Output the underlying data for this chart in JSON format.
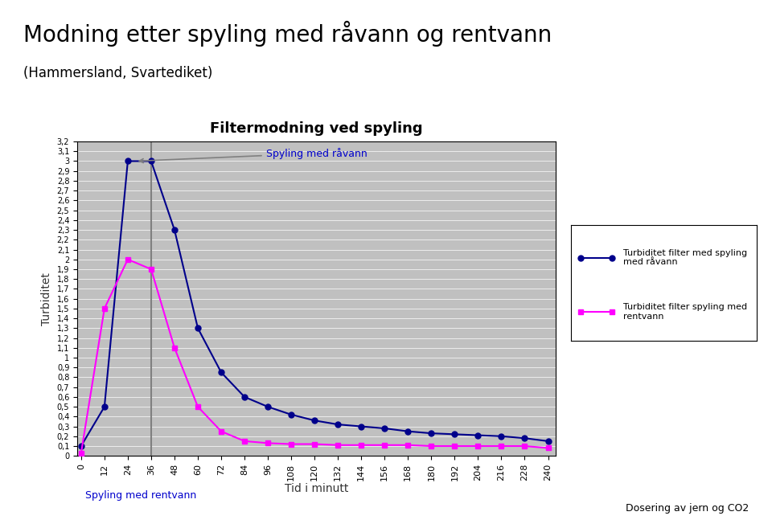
{
  "title": "Modning etter spyling med råvann og rentvann",
  "subtitle": "(Hammersland, Svartediket)",
  "chart_title": "Filtermodning ved spyling",
  "xlabel": "Tid i minutt",
  "ylabel": "Turbiditet",
  "annotation_rawwater": "Spyling med råvann",
  "annotation_cleanwater": "Spyling med rentvann",
  "legend_raw": "Turbiditet filter med spyling\nmed råvann",
  "legend_clean": "Turbiditet filter spyling med\nrentvann",
  "footer_right": "Dosering av jern og CO2",
  "x_ticks": [
    0,
    12,
    24,
    36,
    48,
    60,
    72,
    84,
    96,
    108,
    120,
    132,
    144,
    156,
    168,
    180,
    192,
    204,
    216,
    228,
    240
  ],
  "series_raw_x": [
    0,
    12,
    24,
    36,
    48,
    60,
    72,
    84,
    96,
    108,
    120,
    132,
    144,
    156,
    168,
    180,
    192,
    204,
    216,
    228,
    240
  ],
  "series_raw_y": [
    0.1,
    0.5,
    3.0,
    3.0,
    2.3,
    1.3,
    0.85,
    0.6,
    0.5,
    0.42,
    0.36,
    0.32,
    0.3,
    0.28,
    0.25,
    0.23,
    0.22,
    0.21,
    0.2,
    0.18,
    0.15
  ],
  "series_clean_x": [
    0,
    12,
    24,
    36,
    48,
    60,
    72,
    84,
    96,
    108,
    120,
    132,
    144,
    156,
    168,
    180,
    192,
    204,
    216,
    228,
    240
  ],
  "series_clean_y": [
    0.03,
    1.5,
    2.0,
    1.9,
    1.1,
    0.5,
    0.25,
    0.15,
    0.13,
    0.12,
    0.12,
    0.11,
    0.11,
    0.11,
    0.11,
    0.1,
    0.1,
    0.1,
    0.1,
    0.1,
    0.08
  ],
  "color_raw": "#00008B",
  "color_clean": "#FF00FF",
  "ylim": [
    0,
    3.2
  ],
  "plot_area_color": "#C0C0C0",
  "outer_bg": "#FFFFFF"
}
